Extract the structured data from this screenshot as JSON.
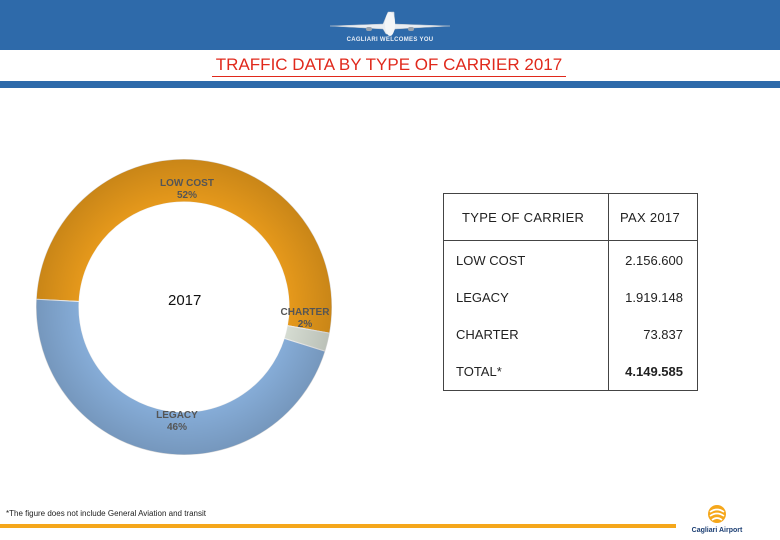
{
  "header": {
    "welcome_text": "CAGLIARI WELCOMES YOU",
    "band_color": "#2e6aaa"
  },
  "title": "TRAFFIC DATA BY TYPE OF CARRIER 2017",
  "chart_data": {
    "type": "pie",
    "center_label": "2017",
    "slices": [
      {
        "label": "LOW COST",
        "value": 52,
        "display": "52%",
        "color": "#f5a31d"
      },
      {
        "label": "CHARTER",
        "value": 2,
        "display": "2%",
        "color": "#e4ebe0"
      },
      {
        "label": "LEGACY",
        "value": 46,
        "display": "46%",
        "color": "#8fb8e6"
      }
    ]
  },
  "table": {
    "headers": [
      "TYPE OF CARRIER",
      "PAX 2017"
    ],
    "rows": [
      {
        "name": "LOW COST",
        "value": "2.156.600"
      },
      {
        "name": "LEGACY",
        "value": "1.919.148"
      },
      {
        "name": "CHARTER",
        "value": "73.837"
      },
      {
        "name": "TOTAL*",
        "value": "4.149.585"
      }
    ]
  },
  "footnote": "*The figure does not include General Aviation and transit",
  "footer": {
    "logo_text": "Cagliari Airport",
    "accent_color": "#f5a71b"
  }
}
